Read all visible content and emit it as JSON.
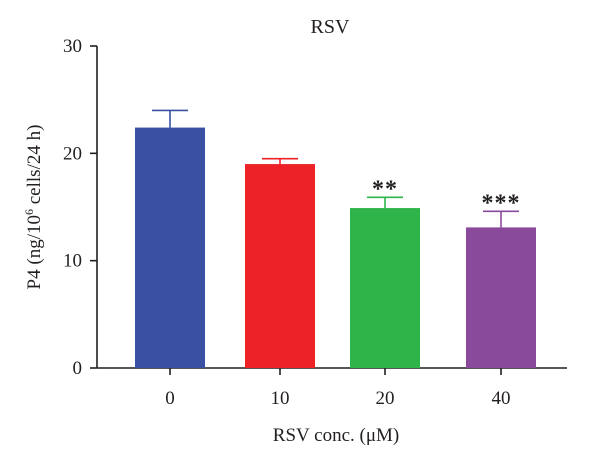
{
  "chart_data": {
    "type": "bar",
    "title": "RSV",
    "xlabel": "RSV conc. (μM)",
    "ylabel_parts": [
      "P4 (ng/10",
      "6",
      " cells/24 h)"
    ],
    "ylabel": "P4 (ng/10^6 cells/24 h)",
    "categories": [
      "0",
      "10",
      "20",
      "40"
    ],
    "values": [
      22.4,
      19.0,
      14.9,
      13.1
    ],
    "errors": [
      1.6,
      0.5,
      1.0,
      1.5
    ],
    "significance": [
      "",
      "",
      "**",
      "***"
    ],
    "colors": [
      "#3a51a3",
      "#ec2227",
      "#2fb44a",
      "#8a4a9c"
    ],
    "ylim": [
      0,
      30
    ],
    "yticks": [
      0,
      10,
      20,
      30
    ],
    "grid": false
  }
}
